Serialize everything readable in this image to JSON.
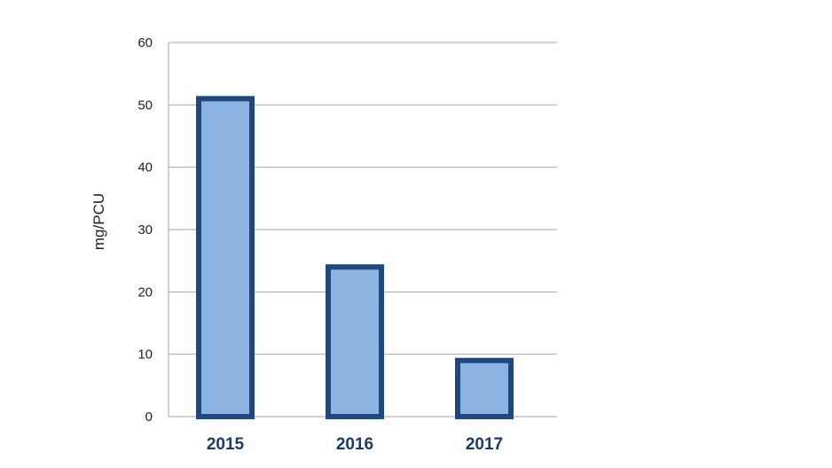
{
  "chart_data": {
    "type": "bar",
    "title": "",
    "xlabel": "",
    "ylabel": "mg/PCU",
    "categories": [
      "2015",
      "2016",
      "2017"
    ],
    "values": [
      51,
      24,
      9
    ],
    "ylim": [
      0,
      60
    ],
    "yticks": [
      0,
      10,
      20,
      30,
      40,
      50,
      60
    ],
    "grid": true,
    "legend": "none",
    "colors": {
      "bar_fill": "#8db3e2",
      "bar_border": "#1f497d",
      "grid": "#a6a6a6",
      "category_text": "#1f3a66"
    }
  }
}
